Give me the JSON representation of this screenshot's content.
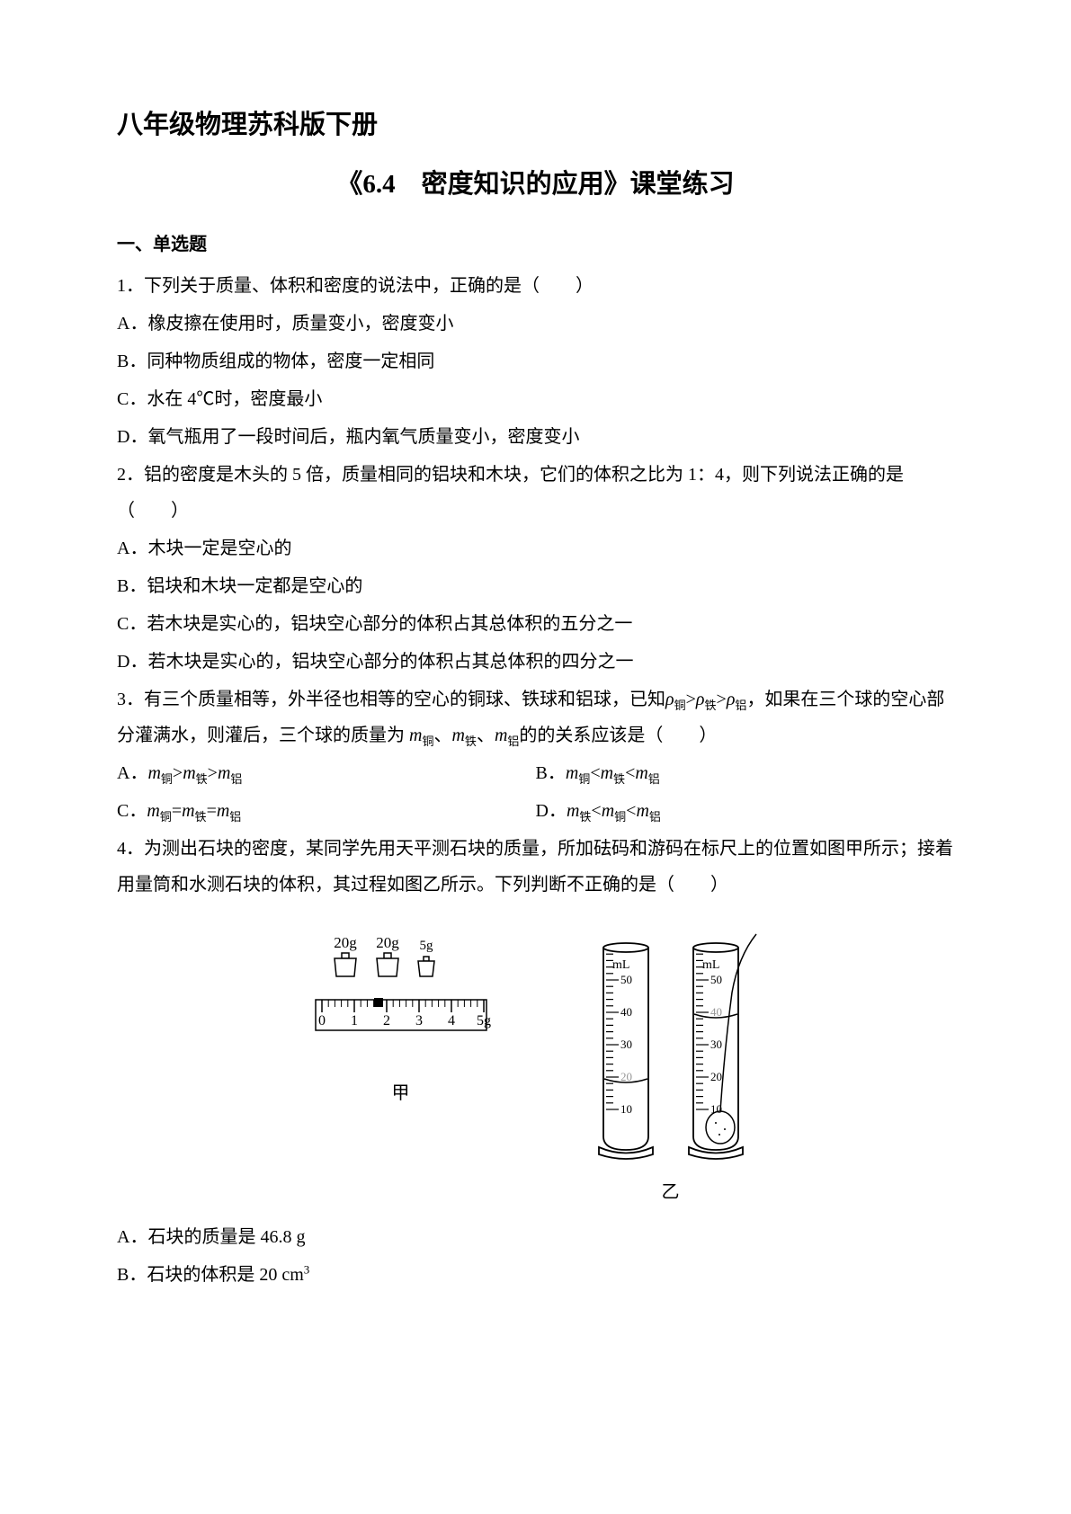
{
  "title_line1": "八年级物理苏科版下册",
  "title_line2": "《6.4　密度知识的应用》课堂练习",
  "section1_heading": "一、单选题",
  "q1": {
    "stem": "1．下列关于质量、体积和密度的说法中，正确的是（　　）",
    "A": "A．橡皮擦在使用时，质量变小，密度变小",
    "B": "B．同种物质组成的物体，密度一定相同",
    "C": "C．水在 4℃时，密度最小",
    "D": "D．氧气瓶用了一段时间后，瓶内氧气质量变小，密度变小"
  },
  "q2": {
    "stem": "2．铝的密度是木头的 5 倍，质量相同的铝块和木块，它们的体积之比为 1：4，则下列说法正确的是（　　）",
    "A": "A．木块一定是空心的",
    "B": "B．铝块和木块一定都是空心的",
    "C": "C．若木块是实心的，铝块空心部分的体积占其总体积的五分之一",
    "D": "D．若木块是实心的，铝块空心部分的体积占其总体积的四分之一"
  },
  "q3": {
    "stem_prefix": "3．有三个质量相等，外半径也相等的空心的铜球、铁球和铝球，已知",
    "rho_cu": "ρ",
    "sub_cu": "铜",
    "gt1": ">",
    "rho_fe": "ρ",
    "sub_fe": "铁",
    "gt2": ">",
    "rho_al": "ρ",
    "sub_al": "铝",
    "stem_mid": "，如果在三个球的空心部分灌满水，则灌后，三个球的质量为 ",
    "m": "m",
    "stem_tail": "的的关系应该是（　　）",
    "A_prefix": "A．",
    "B_prefix": "B．",
    "C_prefix": "C．",
    "D_prefix": "D．",
    "eq": "=",
    "lt": "<",
    "gt": ">",
    "comma": "、"
  },
  "q4": {
    "stem": "4．为测出石块的密度，某同学先用天平测石块的质量，所加砝码和游码在标尺上的位置如图甲所示；接着用量筒和水测石块的体积，其过程如图乙所示。下列判断不正确的是（　　）",
    "A": "A．石块的质量是 46.8 g",
    "B_prefix": "B．石块的体积是 20 cm",
    "B_sup": "3"
  },
  "figure": {
    "label_jia": "甲",
    "label_yi": "乙",
    "weight_labels": [
      "20g",
      "20g",
      "5g"
    ],
    "ruler_ticks": [
      "0",
      "1",
      "2",
      "3",
      "4",
      "5g"
    ],
    "cyl_unit": "mL",
    "cyl_ticks": [
      "50",
      "40",
      "30",
      "20",
      "10"
    ],
    "cyl1_water_level": 20,
    "cyl2_water_level": 40,
    "cyl_max": 55,
    "colors": {
      "stroke": "#000000",
      "water": "#ffffff",
      "highlight_tick": "#969696"
    }
  }
}
